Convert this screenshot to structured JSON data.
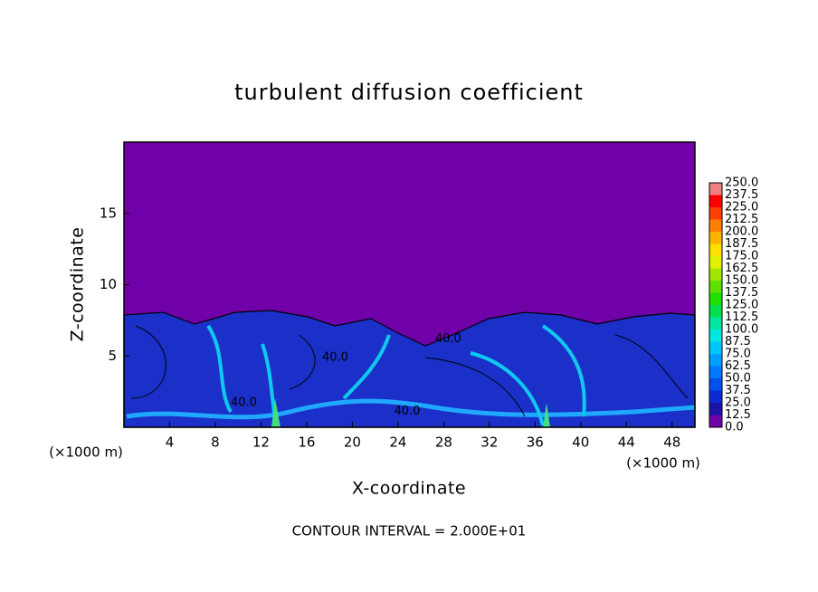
{
  "chart_data": {
    "type": "contour",
    "title": "turbulent diffusion coefficient",
    "x_label": "X-coordinate",
    "y_label": "Z-coordinate",
    "x_unit_label": "(×1000 m)",
    "y_unit_label": "(×1000 m)",
    "footer": "CONTOUR INTERVAL = 2.000E+01",
    "xlim": [
      0,
      50
    ],
    "ylim": [
      0,
      20
    ],
    "xticks": [
      4,
      8,
      12,
      16,
      20,
      24,
      28,
      32,
      36,
      40,
      44,
      48
    ],
    "yticks": [
      5,
      10,
      15
    ],
    "colorbar": {
      "levels": [
        {
          "value": 0,
          "label": "0.0"
        },
        12.5,
        {
          "value": 25,
          "label": "25.0"
        },
        37.5,
        {
          "value": 50,
          "label": "50.0"
        },
        62.5,
        {
          "value": 75,
          "label": "75.0"
        },
        87.5,
        {
          "value": 100,
          "label": "100.0"
        },
        112.5,
        {
          "value": 125,
          "label": "125.0"
        },
        137.5,
        {
          "value": 150,
          "label": "150.0"
        },
        162.5,
        {
          "value": 175,
          "label": "175.0"
        },
        187.5,
        {
          "value": 200,
          "label": "200.0"
        },
        212.5,
        {
          "value": 225,
          "label": "225.0"
        },
        237.5,
        {
          "value": 250,
          "label": "250.0"
        }
      ],
      "colors": [
        "#7000a8",
        "#1a14a8",
        "#0a2ad2",
        "#0050f0",
        "#0078ff",
        "#00a0ff",
        "#00c8ff",
        "#00e8e0",
        "#00e6a0",
        "#00e050",
        "#20e000",
        "#60e000",
        "#a0e800",
        "#e0f000",
        "#ffe000",
        "#ffb400",
        "#ff8000",
        "#ff4000",
        "#ff0000",
        "#f08080"
      ]
    },
    "annotations": [
      {
        "text": "40.0",
        "x": 18.5,
        "y": 4.9
      },
      {
        "text": "40.0",
        "x": 28.4,
        "y": 6.2
      },
      {
        "text": "40.0",
        "x": 24.8,
        "y": 1.1
      },
      {
        "text": "40.0",
        "x": 10.5,
        "y": 1.7
      }
    ]
  }
}
